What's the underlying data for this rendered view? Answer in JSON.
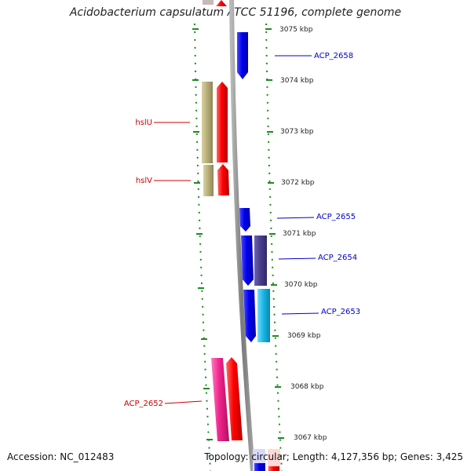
{
  "title": "Acidobacterium capsulatum ATCC 51196, complete genome",
  "accession": "Accession: NC_012483",
  "topology": "Topology: circular; Length: 4,127,356 bp; Genes: 3,425",
  "scale_labels": [
    "3075 kbp",
    "3074 kbp",
    "3073 kbp",
    "3072 kbp",
    "3071 kbp",
    "3070 kbp",
    "3069 kbp",
    "3068 kbp",
    "3067 kbp"
  ],
  "genes_left": [
    {
      "name": "hslU",
      "color": "#cc0000"
    },
    {
      "name": "hslV",
      "color": "#cc0000"
    },
    {
      "name": "ACP_2652",
      "color": "#cc0000"
    }
  ],
  "genes_right": [
    {
      "name": "ACP_2658",
      "color": "#0000cc"
    },
    {
      "name": "ACP_2655",
      "color": "#0000cc"
    },
    {
      "name": "ACP_2654",
      "color": "#0000cc"
    },
    {
      "name": "ACP_2653",
      "color": "#0000cc"
    }
  ],
  "colors": {
    "backbone": "#8c8c8c",
    "tick": "#1f8a1f",
    "red_gene": "#ff0000",
    "olive_gene": "#b9b07a",
    "blue_gene": "#0000ee",
    "purple_gene": "#4a3f8f",
    "cyan_gene": "#19b8e8",
    "pink_gene": "#f0238c"
  }
}
